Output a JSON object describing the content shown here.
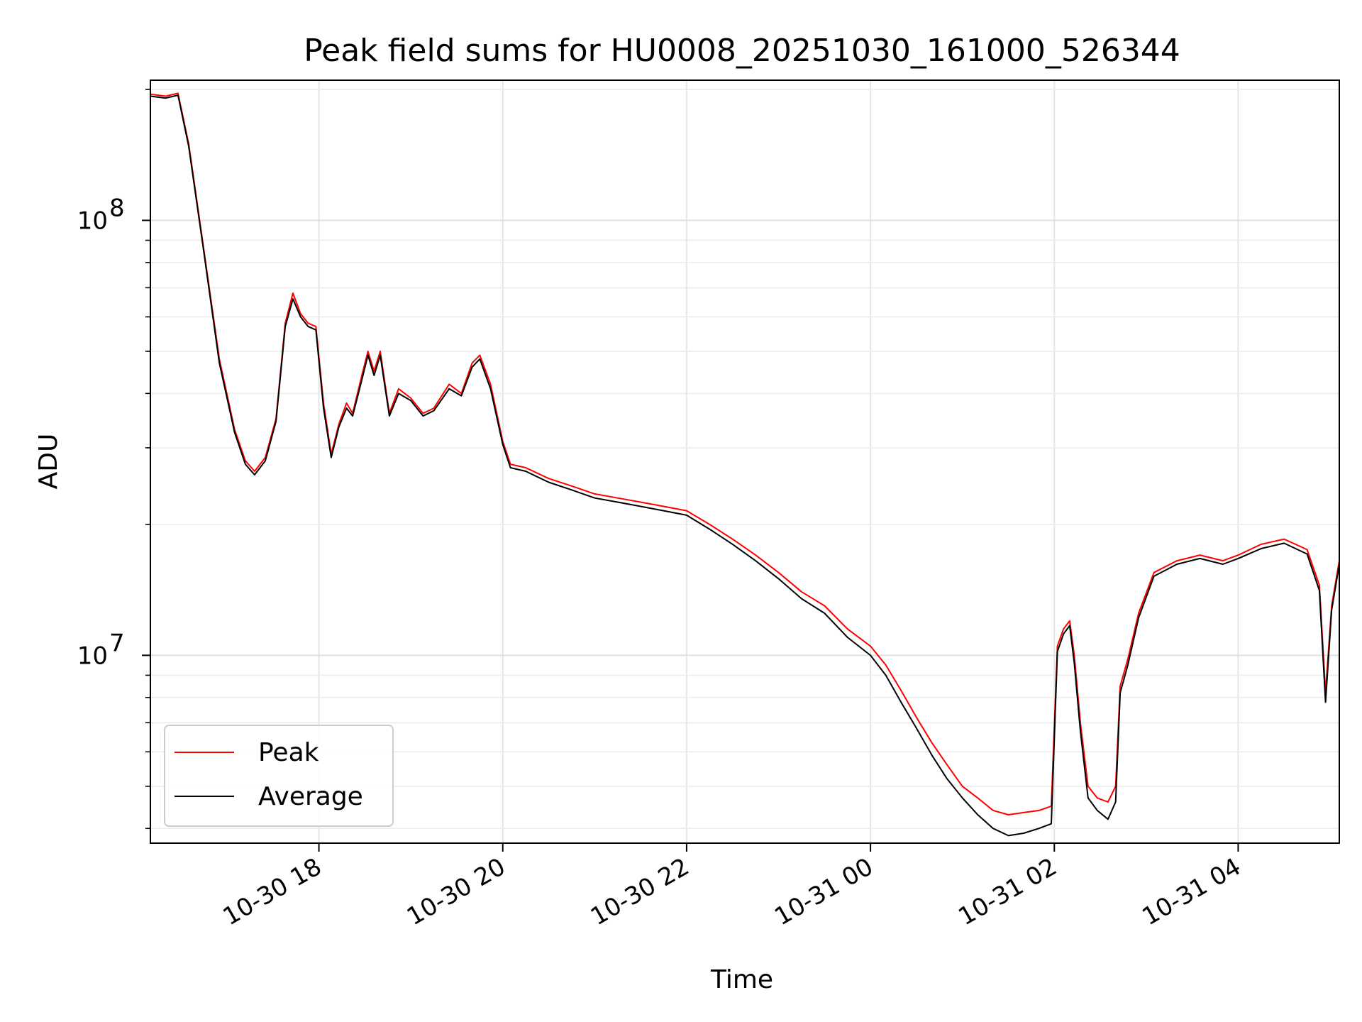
{
  "chart_data": {
    "type": "line",
    "title": "Peak field sums for HU0008_20251030_161000_526344",
    "xlabel": "Time",
    "ylabel": "ADU",
    "yscale": "log",
    "ylim": [
      3700000,
      210000000
    ],
    "xlim": [
      "2025-10-30 16:10",
      "2025-10-31 05:06"
    ],
    "x_ticks": [
      {
        "value": "2025-10-30 18:00",
        "label": "10-30 18"
      },
      {
        "value": "2025-10-30 20:00",
        "label": "10-30 20"
      },
      {
        "value": "2025-10-30 22:00",
        "label": "10-30 22"
      },
      {
        "value": "2025-10-31 00:00",
        "label": "10-31 00"
      },
      {
        "value": "2025-10-31 02:00",
        "label": "10-31 02"
      },
      {
        "value": "2025-10-31 04:00",
        "label": "10-31 04"
      }
    ],
    "y_ticks": [
      {
        "value": 10000000,
        "base": "10",
        "exp": "7"
      },
      {
        "value": 100000000,
        "base": "10",
        "exp": "8"
      }
    ],
    "grid": true,
    "legend_position": "lower-left",
    "series": [
      {
        "name": "Peak",
        "color": "#ff0000",
        "points": [
          [
            "2025-10-30 16:10",
            195000000
          ],
          [
            "2025-10-30 16:20",
            193000000
          ],
          [
            "2025-10-30 16:28",
            196000000
          ],
          [
            "2025-10-30 16:35",
            150000000
          ],
          [
            "2025-10-30 16:45",
            85000000
          ],
          [
            "2025-10-30 16:55",
            48000000
          ],
          [
            "2025-10-30 17:05",
            33000000
          ],
          [
            "2025-10-30 17:12",
            28000000
          ],
          [
            "2025-10-30 17:18",
            26500000
          ],
          [
            "2025-10-30 17:25",
            28500000
          ],
          [
            "2025-10-30 17:32",
            35000000
          ],
          [
            "2025-10-30 17:38",
            58000000
          ],
          [
            "2025-10-30 17:43",
            68000000
          ],
          [
            "2025-10-30 17:48",
            61000000
          ],
          [
            "2025-10-30 17:53",
            58000000
          ],
          [
            "2025-10-30 17:58",
            57000000
          ],
          [
            "2025-10-30 18:03",
            38000000
          ],
          [
            "2025-10-30 18:08",
            29000000
          ],
          [
            "2025-10-30 18:13",
            34000000
          ],
          [
            "2025-10-30 18:18",
            38000000
          ],
          [
            "2025-10-30 18:22",
            36000000
          ],
          [
            "2025-10-30 18:28",
            44000000
          ],
          [
            "2025-10-30 18:32",
            50000000
          ],
          [
            "2025-10-30 18:36",
            45000000
          ],
          [
            "2025-10-30 18:40",
            50000000
          ],
          [
            "2025-10-30 18:46",
            36000000
          ],
          [
            "2025-10-30 18:52",
            41000000
          ],
          [
            "2025-10-30 19:00",
            39000000
          ],
          [
            "2025-10-30 19:08",
            36000000
          ],
          [
            "2025-10-30 19:15",
            37000000
          ],
          [
            "2025-10-30 19:25",
            42000000
          ],
          [
            "2025-10-30 19:33",
            40000000
          ],
          [
            "2025-10-30 19:40",
            47000000
          ],
          [
            "2025-10-30 19:45",
            49000000
          ],
          [
            "2025-10-30 19:52",
            42000000
          ],
          [
            "2025-10-30 20:00",
            31000000
          ],
          [
            "2025-10-30 20:05",
            27500000
          ],
          [
            "2025-10-30 20:15",
            27000000
          ],
          [
            "2025-10-30 20:30",
            25500000
          ],
          [
            "2025-10-30 20:45",
            24500000
          ],
          [
            "2025-10-30 21:00",
            23500000
          ],
          [
            "2025-10-30 21:15",
            23000000
          ],
          [
            "2025-10-30 21:30",
            22500000
          ],
          [
            "2025-10-30 21:45",
            22000000
          ],
          [
            "2025-10-30 22:00",
            21500000
          ],
          [
            "2025-10-30 22:15",
            20000000
          ],
          [
            "2025-10-30 22:30",
            18500000
          ],
          [
            "2025-10-30 22:45",
            17000000
          ],
          [
            "2025-10-30 23:00",
            15500000
          ],
          [
            "2025-10-30 23:15",
            14000000
          ],
          [
            "2025-10-30 23:30",
            13000000
          ],
          [
            "2025-10-30 23:45",
            11500000
          ],
          [
            "2025-10-31 00:00",
            10500000
          ],
          [
            "2025-10-31 00:10",
            9500000
          ],
          [
            "2025-10-31 00:20",
            8300000
          ],
          [
            "2025-10-31 00:30",
            7200000
          ],
          [
            "2025-10-31 00:40",
            6300000
          ],
          [
            "2025-10-31 00:50",
            5600000
          ],
          [
            "2025-10-31 01:00",
            5000000
          ],
          [
            "2025-10-31 01:10",
            4700000
          ],
          [
            "2025-10-31 01:20",
            4400000
          ],
          [
            "2025-10-31 01:30",
            4300000
          ],
          [
            "2025-10-31 01:40",
            4350000
          ],
          [
            "2025-10-31 01:50",
            4400000
          ],
          [
            "2025-10-31 01:58",
            4500000
          ],
          [
            "2025-10-31 02:02",
            10500000
          ],
          [
            "2025-10-31 02:06",
            11500000
          ],
          [
            "2025-10-31 02:10",
            12000000
          ],
          [
            "2025-10-31 02:13",
            10000000
          ],
          [
            "2025-10-31 02:17",
            7000000
          ],
          [
            "2025-10-31 02:22",
            5000000
          ],
          [
            "2025-10-31 02:28",
            4700000
          ],
          [
            "2025-10-31 02:35",
            4600000
          ],
          [
            "2025-10-31 02:40",
            5000000
          ],
          [
            "2025-10-31 02:43",
            8500000
          ],
          [
            "2025-10-31 02:48",
            9800000
          ],
          [
            "2025-10-31 02:55",
            12500000
          ],
          [
            "2025-10-31 03:05",
            15500000
          ],
          [
            "2025-10-31 03:20",
            16500000
          ],
          [
            "2025-10-31 03:35",
            17000000
          ],
          [
            "2025-10-31 03:50",
            16500000
          ],
          [
            "2025-10-31 04:00",
            17000000
          ],
          [
            "2025-10-31 04:15",
            18000000
          ],
          [
            "2025-10-31 04:30",
            18500000
          ],
          [
            "2025-10-31 04:45",
            17500000
          ],
          [
            "2025-10-31 04:53",
            14500000
          ],
          [
            "2025-10-31 04:57",
            8200000
          ],
          [
            "2025-10-31 05:01",
            13000000
          ],
          [
            "2025-10-31 05:06",
            16500000
          ]
        ]
      },
      {
        "name": "Average",
        "color": "#000000",
        "points": [
          [
            "2025-10-30 16:10",
            193000000
          ],
          [
            "2025-10-30 16:20",
            191000000
          ],
          [
            "2025-10-30 16:28",
            194000000
          ],
          [
            "2025-10-30 16:35",
            148000000
          ],
          [
            "2025-10-30 16:45",
            84000000
          ],
          [
            "2025-10-30 16:55",
            47000000
          ],
          [
            "2025-10-30 17:05",
            32500000
          ],
          [
            "2025-10-30 17:12",
            27500000
          ],
          [
            "2025-10-30 17:18",
            26000000
          ],
          [
            "2025-10-30 17:25",
            28000000
          ],
          [
            "2025-10-30 17:32",
            34500000
          ],
          [
            "2025-10-30 17:38",
            57000000
          ],
          [
            "2025-10-30 17:43",
            66000000
          ],
          [
            "2025-10-30 17:48",
            60000000
          ],
          [
            "2025-10-30 17:53",
            57000000
          ],
          [
            "2025-10-30 17:58",
            56000000
          ],
          [
            "2025-10-30 18:03",
            37000000
          ],
          [
            "2025-10-30 18:08",
            28500000
          ],
          [
            "2025-10-30 18:13",
            33500000
          ],
          [
            "2025-10-30 18:18",
            37000000
          ],
          [
            "2025-10-30 18:22",
            35500000
          ],
          [
            "2025-10-30 18:28",
            43000000
          ],
          [
            "2025-10-30 18:32",
            49000000
          ],
          [
            "2025-10-30 18:36",
            44000000
          ],
          [
            "2025-10-30 18:40",
            49000000
          ],
          [
            "2025-10-30 18:46",
            35500000
          ],
          [
            "2025-10-30 18:52",
            40000000
          ],
          [
            "2025-10-30 19:00",
            38500000
          ],
          [
            "2025-10-30 19:08",
            35500000
          ],
          [
            "2025-10-30 19:15",
            36500000
          ],
          [
            "2025-10-30 19:25",
            41000000
          ],
          [
            "2025-10-30 19:33",
            39500000
          ],
          [
            "2025-10-30 19:40",
            46000000
          ],
          [
            "2025-10-30 19:45",
            48000000
          ],
          [
            "2025-10-30 19:52",
            41000000
          ],
          [
            "2025-10-30 20:00",
            30500000
          ],
          [
            "2025-10-30 20:05",
            27000000
          ],
          [
            "2025-10-30 20:15",
            26500000
          ],
          [
            "2025-10-30 20:30",
            25000000
          ],
          [
            "2025-10-30 20:45",
            24000000
          ],
          [
            "2025-10-30 21:00",
            23000000
          ],
          [
            "2025-10-30 21:15",
            22500000
          ],
          [
            "2025-10-30 21:30",
            22000000
          ],
          [
            "2025-10-30 21:45",
            21500000
          ],
          [
            "2025-10-30 22:00",
            21000000
          ],
          [
            "2025-10-30 22:15",
            19500000
          ],
          [
            "2025-10-30 22:30",
            18000000
          ],
          [
            "2025-10-30 22:45",
            16500000
          ],
          [
            "2025-10-30 23:00",
            15000000
          ],
          [
            "2025-10-30 23:15",
            13500000
          ],
          [
            "2025-10-30 23:30",
            12500000
          ],
          [
            "2025-10-30 23:45",
            11000000
          ],
          [
            "2025-10-31 00:00",
            10000000
          ],
          [
            "2025-10-31 00:10",
            9000000
          ],
          [
            "2025-10-31 00:20",
            7800000
          ],
          [
            "2025-10-31 00:30",
            6800000
          ],
          [
            "2025-10-31 00:40",
            5900000
          ],
          [
            "2025-10-31 00:50",
            5200000
          ],
          [
            "2025-10-31 01:00",
            4700000
          ],
          [
            "2025-10-31 01:10",
            4300000
          ],
          [
            "2025-10-31 01:20",
            4000000
          ],
          [
            "2025-10-31 01:30",
            3850000
          ],
          [
            "2025-10-31 01:40",
            3900000
          ],
          [
            "2025-10-31 01:50",
            4000000
          ],
          [
            "2025-10-31 01:58",
            4100000
          ],
          [
            "2025-10-31 02:02",
            10200000
          ],
          [
            "2025-10-31 02:06",
            11200000
          ],
          [
            "2025-10-31 02:10",
            11700000
          ],
          [
            "2025-10-31 02:13",
            9600000
          ],
          [
            "2025-10-31 02:17",
            6700000
          ],
          [
            "2025-10-31 02:22",
            4700000
          ],
          [
            "2025-10-31 02:28",
            4400000
          ],
          [
            "2025-10-31 02:35",
            4200000
          ],
          [
            "2025-10-31 02:40",
            4600000
          ],
          [
            "2025-10-31 02:43",
            8200000
          ],
          [
            "2025-10-31 02:48",
            9500000
          ],
          [
            "2025-10-31 02:55",
            12200000
          ],
          [
            "2025-10-31 03:05",
            15200000
          ],
          [
            "2025-10-31 03:20",
            16200000
          ],
          [
            "2025-10-31 03:35",
            16700000
          ],
          [
            "2025-10-31 03:50",
            16200000
          ],
          [
            "2025-10-31 04:00",
            16700000
          ],
          [
            "2025-10-31 04:15",
            17600000
          ],
          [
            "2025-10-31 04:30",
            18100000
          ],
          [
            "2025-10-31 04:45",
            17100000
          ],
          [
            "2025-10-31 04:53",
            14100000
          ],
          [
            "2025-10-31 04:57",
            7800000
          ],
          [
            "2025-10-31 05:01",
            12700000
          ],
          [
            "2025-10-31 05:06",
            16200000
          ]
        ]
      }
    ]
  }
}
